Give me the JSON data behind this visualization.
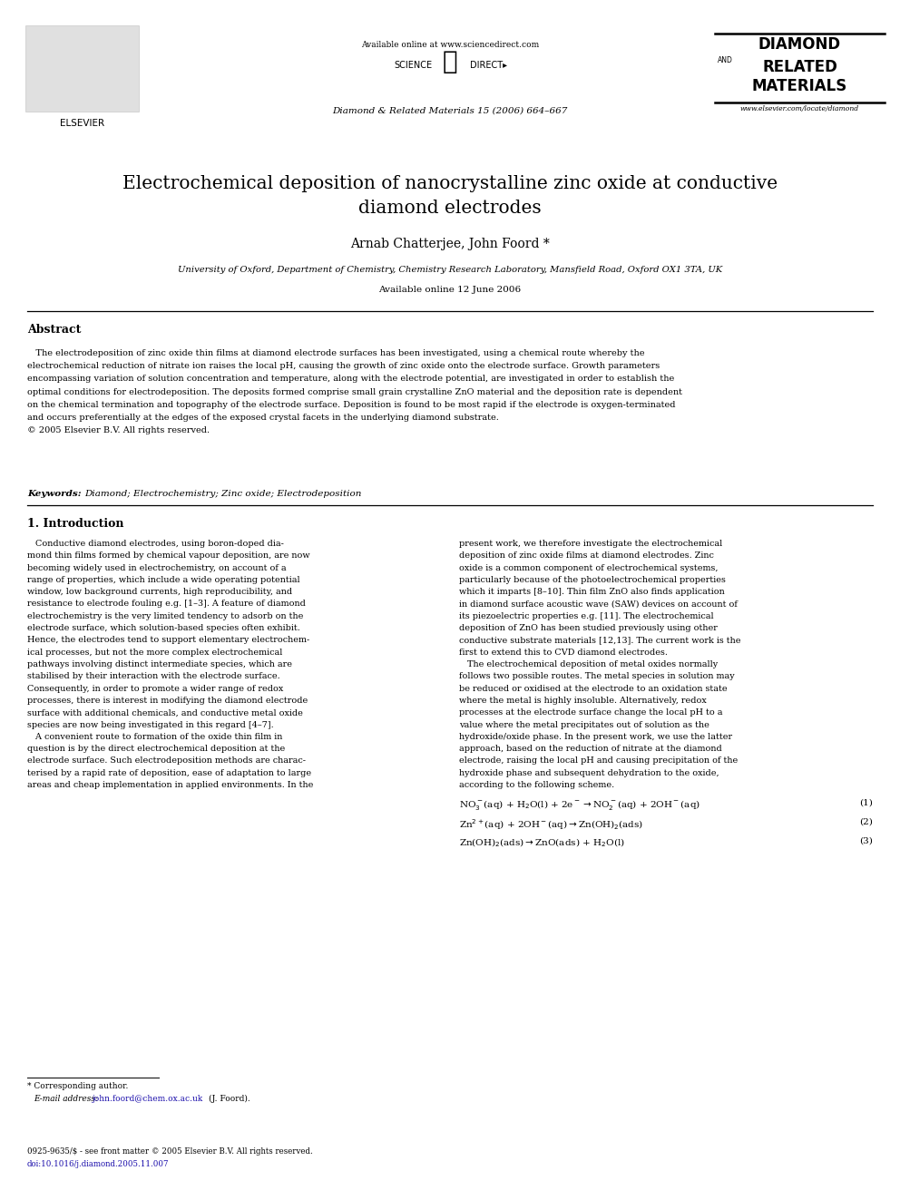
{
  "page_width": 9.92,
  "page_height": 13.23,
  "background_color": "#ffffff",
  "header_available_online": "Available online at www.sciencedirect.com",
  "header_journal_info": "Diamond & Related Materials 15 (2006) 664–667",
  "journal_name_line1": "DIAMOND",
  "journal_name_and": "AND",
  "journal_name_line2": "RELATED",
  "journal_name_line3": "MATERIALS",
  "journal_url": "www.elsevier.com/locate/diamond",
  "elsevier_label": "ELSEVIER",
  "title_line1": "Electrochemical deposition of nanocrystalline zinc oxide at conductive",
  "title_line2": "diamond electrodes",
  "authors": "Arnab Chatterjee, John Foord *",
  "affiliation": "University of Oxford, Department of Chemistry, Chemistry Research Laboratory, Mansfield Road, Oxford OX1 3TA, UK",
  "available_online_date": "Available online 12 June 2006",
  "abstract_title": "Abstract",
  "abstract_lines": [
    "   The electrodeposition of zinc oxide thin films at diamond electrode surfaces has been investigated, using a chemical route whereby the",
    "electrochemical reduction of nitrate ion raises the local pH, causing the growth of zinc oxide onto the electrode surface. Growth parameters",
    "encompassing variation of solution concentration and temperature, along with the electrode potential, are investigated in order to establish the",
    "optimal conditions for electrodeposition. The deposits formed comprise small grain crystalline ZnO material and the deposition rate is dependent",
    "on the chemical termination and topography of the electrode surface. Deposition is found to be most rapid if the electrode is oxygen-terminated",
    "and occurs preferentially at the edges of the exposed crystal facets in the underlying diamond substrate.",
    "© 2005 Elsevier B.V. All rights reserved."
  ],
  "keywords_label": "Keywords:",
  "keywords_text": "Diamond; Electrochemistry; Zinc oxide; Electrodeposition",
  "section1_title": "1. Introduction",
  "col1_lines": [
    "   Conductive diamond electrodes, using boron-doped dia-",
    "mond thin films formed by chemical vapour deposition, are now",
    "becoming widely used in electrochemistry, on account of a",
    "range of properties, which include a wide operating potential",
    "window, low background currents, high reproducibility, and",
    "resistance to electrode fouling e.g. [1–3]. A feature of diamond",
    "electrochemistry is the very limited tendency to adsorb on the",
    "electrode surface, which solution-based species often exhibit.",
    "Hence, the electrodes tend to support elementary electrochem-",
    "ical processes, but not the more complex electrochemical",
    "pathways involving distinct intermediate species, which are",
    "stabilised by their interaction with the electrode surface.",
    "Consequently, in order to promote a wider range of redox",
    "processes, there is interest in modifying the diamond electrode",
    "surface with additional chemicals, and conductive metal oxide",
    "species are now being investigated in this regard [4–7].",
    "   A convenient route to formation of the oxide thin film in",
    "question is by the direct electrochemical deposition at the",
    "electrode surface. Such electrodeposition methods are charac-",
    "terised by a rapid rate of deposition, ease of adaptation to large",
    "areas and cheap implementation in applied environments. In the"
  ],
  "col2_lines": [
    "present work, we therefore investigate the electrochemical",
    "deposition of zinc oxide films at diamond electrodes. Zinc",
    "oxide is a common component of electrochemical systems,",
    "particularly because of the photoelectrochemical properties",
    "which it imparts [8–10]. Thin film ZnO also finds application",
    "in diamond surface acoustic wave (SAW) devices on account of",
    "its piezoelectric properties e.g. [11]. The electrochemical",
    "deposition of ZnO has been studied previously using other",
    "conductive substrate materials [12,13]. The current work is the",
    "first to extend this to CVD diamond electrodes.",
    "   The electrochemical deposition of metal oxides normally",
    "follows two possible routes. The metal species in solution may",
    "be reduced or oxidised at the electrode to an oxidation state",
    "where the metal is highly insoluble. Alternatively, redox",
    "processes at the electrode surface change the local pH to a",
    "value where the metal precipitates out of solution as the",
    "hydroxide/oxide phase. In the present work, we use the latter",
    "approach, based on the reduction of nitrate at the diamond",
    "electrode, raising the local pH and causing precipitation of the",
    "hydroxide phase and subsequent dehydration to the oxide,",
    "according to the following scheme."
  ],
  "footnote_star": "* Corresponding author.",
  "footnote_email_label": "E-mail address:",
  "footnote_email": "john.foord@chem.ox.ac.uk",
  "footnote_email_suffix": "(J. Foord).",
  "footer_issn": "0925-9635/$ - see front matter © 2005 Elsevier B.V. All rights reserved.",
  "footer_doi": "doi:10.1016/j.diamond.2005.11.007"
}
